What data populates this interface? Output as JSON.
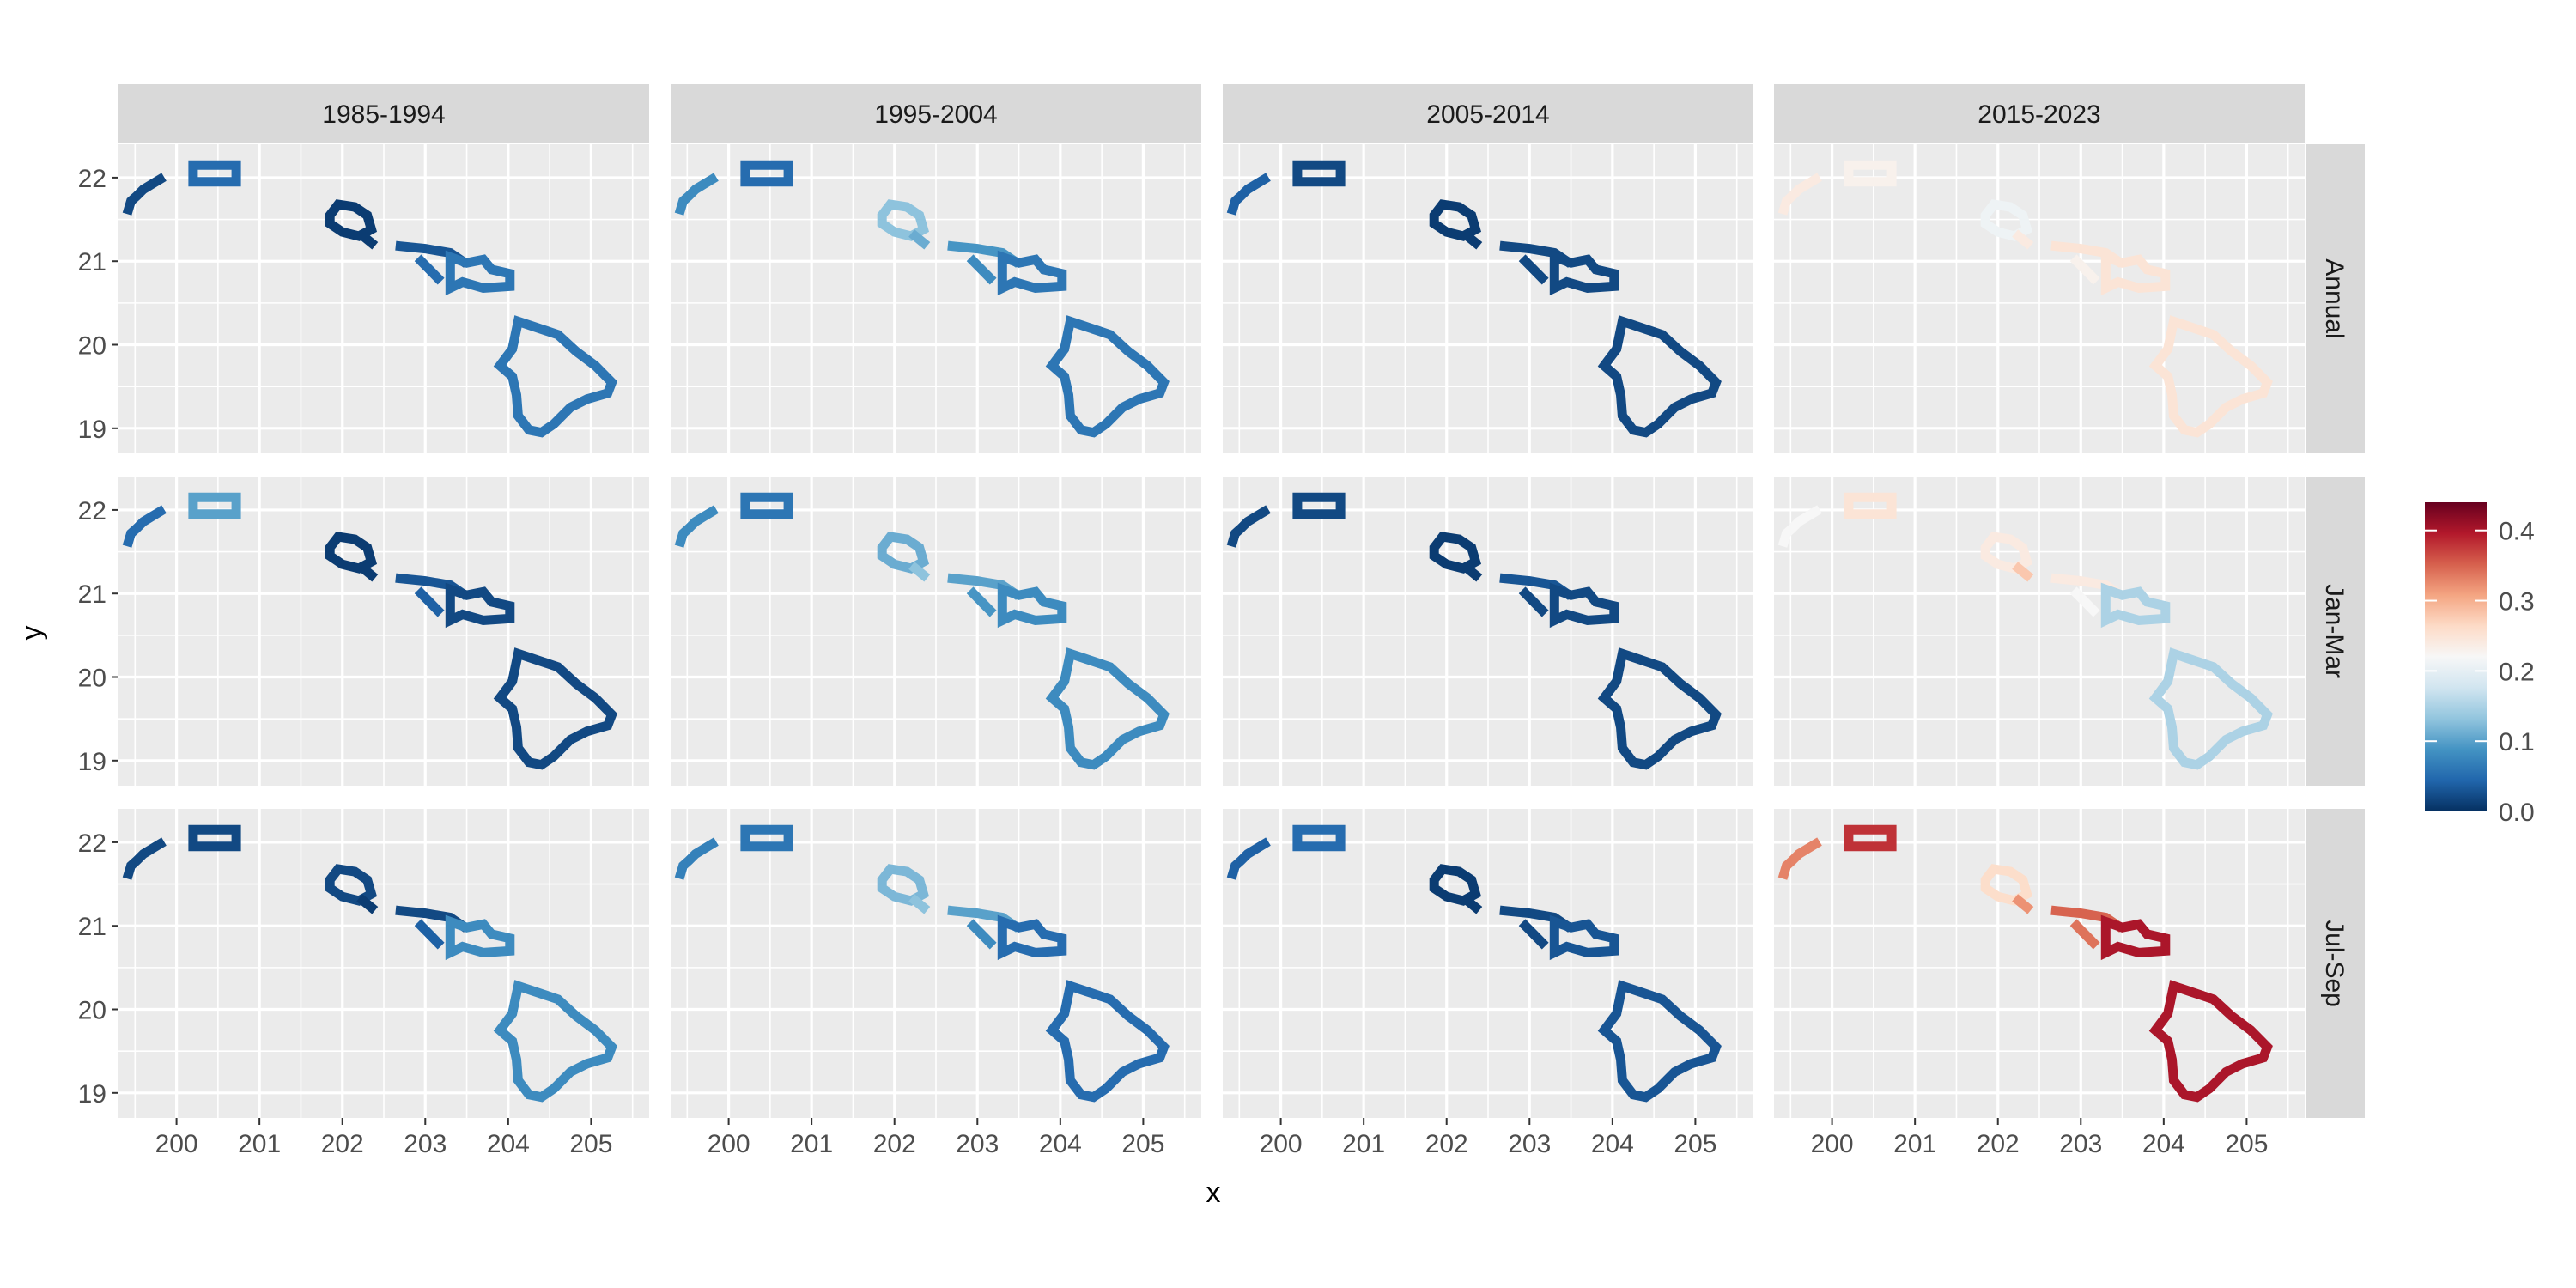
{
  "chart_data": {
    "type": "heatmap",
    "title": "",
    "xlabel": "x",
    "ylabel": "y",
    "xlim": [
      199.3,
      205.7
    ],
    "ylim": [
      18.7,
      22.4
    ],
    "x_ticks": [
      "200",
      "201",
      "202",
      "203",
      "204",
      "205"
    ],
    "y_ticks": [
      "19",
      "20",
      "21",
      "22"
    ],
    "column_facets": [
      "1985-1994",
      "1995-2004",
      "2005-2014",
      "2015-2023"
    ],
    "row_facets": [
      "Annual",
      "Jan-Mar",
      "Jul-Sep"
    ],
    "legend": {
      "position": "right",
      "min": 0.0,
      "max": 0.44,
      "ticks": [
        "0.0",
        "0.1",
        "0.2",
        "0.3",
        "0.4"
      ],
      "colors": [
        "#053061",
        "#2166ac",
        "#4393c3",
        "#92c5de",
        "#d1e5f0",
        "#f7f7f7",
        "#fddbc7",
        "#f4a582",
        "#d6604d",
        "#b2182b",
        "#67001f"
      ]
    },
    "islands": [
      {
        "name": "Kauai",
        "points": [
          [
            199.42,
            21.62
          ],
          [
            199.45,
            21.72
          ],
          [
            199.52,
            21.78
          ],
          [
            199.6,
            21.86
          ],
          [
            199.7,
            21.92
          ],
          [
            199.8,
            21.98
          ]
        ]
      },
      {
        "name": "Niihau-box",
        "points": [
          [
            200.2,
            21.95
          ],
          [
            200.2,
            22.15
          ],
          [
            200.72,
            22.15
          ],
          [
            200.72,
            21.95
          ]
        ],
        "closed": true
      },
      {
        "name": "Oahu",
        "points": [
          [
            201.85,
            21.55
          ],
          [
            201.95,
            21.68
          ],
          [
            202.15,
            21.65
          ],
          [
            202.3,
            21.55
          ],
          [
            202.35,
            21.38
          ],
          [
            202.2,
            21.3
          ],
          [
            202.0,
            21.35
          ],
          [
            201.85,
            21.45
          ]
        ],
        "closed": true
      },
      {
        "name": "Oahu-tail",
        "points": [
          [
            202.25,
            21.3
          ],
          [
            202.35,
            21.22
          ]
        ]
      },
      {
        "name": "Molokai",
        "points": [
          [
            202.7,
            21.18
          ],
          [
            203.0,
            21.15
          ],
          [
            203.3,
            21.1
          ],
          [
            203.45,
            21.0
          ]
        ]
      },
      {
        "name": "Lanai",
        "points": [
          [
            202.95,
            21.0
          ],
          [
            203.05,
            20.9
          ],
          [
            203.15,
            20.8
          ]
        ]
      },
      {
        "name": "Maui",
        "points": [
          [
            203.3,
            21.05
          ],
          [
            203.5,
            20.98
          ],
          [
            203.7,
            21.02
          ],
          [
            203.8,
            20.9
          ],
          [
            204.02,
            20.85
          ],
          [
            204.02,
            20.7
          ],
          [
            203.7,
            20.68
          ],
          [
            203.45,
            20.75
          ],
          [
            203.3,
            20.68
          ],
          [
            203.3,
            20.85
          ]
        ],
        "closed": true
      },
      {
        "name": "Hawaii",
        "points": [
          [
            204.12,
            20.28
          ],
          [
            204.3,
            20.22
          ],
          [
            204.6,
            20.12
          ],
          [
            204.82,
            19.92
          ],
          [
            205.05,
            19.75
          ],
          [
            205.25,
            19.55
          ],
          [
            205.2,
            19.42
          ],
          [
            204.95,
            19.35
          ],
          [
            204.75,
            19.25
          ],
          [
            204.55,
            19.05
          ],
          [
            204.4,
            18.95
          ],
          [
            204.25,
            18.98
          ],
          [
            204.12,
            19.15
          ],
          [
            204.1,
            19.4
          ],
          [
            204.05,
            19.62
          ],
          [
            203.9,
            19.75
          ],
          [
            204.05,
            19.95
          ]
        ],
        "closed": true
      }
    ],
    "panels": [
      {
        "column": "1985-1994",
        "row": "Annual",
        "values": [
          0.02,
          0.05,
          0.01,
          0.01,
          0.03,
          0.05,
          0.06
        ]
      },
      {
        "column": "1985-1994",
        "row": "Jan-Mar",
        "values": [
          0.05,
          0.1,
          0.01,
          0.01,
          0.03,
          0.04,
          0.02
        ]
      },
      {
        "column": "1985-1994",
        "row": "Jul-Sep",
        "values": [
          0.02,
          0.02,
          0.02,
          0.01,
          0.02,
          0.04,
          0.08
        ]
      },
      {
        "column": "1995-2004",
        "row": "Annual",
        "values": [
          0.08,
          0.05,
          0.13,
          0.11,
          0.09,
          0.08,
          0.06
        ]
      },
      {
        "column": "1995-2004",
        "row": "Jan-Mar",
        "values": [
          0.08,
          0.06,
          0.11,
          0.13,
          0.1,
          0.09,
          0.08
        ]
      },
      {
        "column": "1995-2004",
        "row": "Jul-Sep",
        "values": [
          0.07,
          0.06,
          0.12,
          0.13,
          0.1,
          0.08,
          0.05
        ]
      },
      {
        "column": "2005-2014",
        "row": "Annual",
        "values": [
          0.04,
          0.02,
          0.01,
          0.01,
          0.02,
          0.02,
          0.02
        ]
      },
      {
        "column": "2005-2014",
        "row": "Jan-Mar",
        "values": [
          0.02,
          0.02,
          0.01,
          0.01,
          0.03,
          0.02,
          0.02
        ]
      },
      {
        "column": "2005-2014",
        "row": "Jul-Sep",
        "values": [
          0.04,
          0.05,
          0.01,
          0.01,
          0.02,
          0.02,
          0.03
        ]
      },
      {
        "column": "2015-2023",
        "row": "Annual",
        "values": [
          0.24,
          0.23,
          0.21,
          0.24,
          0.25,
          0.23,
          0.25
        ]
      },
      {
        "column": "2015-2023",
        "row": "Jan-Mar",
        "values": [
          0.22,
          0.25,
          0.24,
          0.28,
          0.24,
          0.22,
          0.15
        ]
      },
      {
        "column": "2015-2023",
        "row": "Jul-Sep",
        "values": [
          0.33,
          0.38,
          0.26,
          0.32,
          0.35,
          0.34,
          0.4
        ]
      }
    ]
  }
}
